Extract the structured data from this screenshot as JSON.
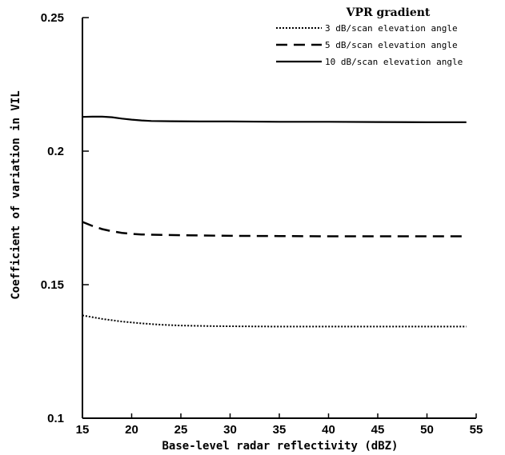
{
  "chart_data": {
    "type": "line",
    "xlabel": "Base-level radar reflectivity (dBZ)",
    "ylabel": "Coefficient of variation in VIL",
    "xlim": [
      15,
      55
    ],
    "ylim": [
      0.1,
      0.25
    ],
    "xticks": [
      "15",
      "20",
      "25",
      "30",
      "35",
      "40",
      "45",
      "50",
      "55"
    ],
    "yticks": [
      "0.1",
      "0.15",
      "0.2",
      "0.25"
    ],
    "grid": false,
    "legend": {
      "title": "VPR gradient",
      "position": "top-right"
    },
    "series": [
      {
        "name": "3 dB/scan elevation angle",
        "style": "dotted",
        "x": [
          15,
          17,
          19,
          21,
          23,
          25,
          28,
          31,
          35,
          40,
          45,
          50,
          54
        ],
        "y": [
          0.1385,
          0.1372,
          0.1362,
          0.1355,
          0.135,
          0.1347,
          0.1345,
          0.1344,
          0.1343,
          0.1343,
          0.1343,
          0.1343,
          0.1343
        ]
      },
      {
        "name": "5 dB/scan elevation angle",
        "style": "dashed",
        "x": [
          15,
          16,
          17,
          18,
          19,
          20,
          21,
          22,
          25,
          30,
          35,
          40,
          45,
          50,
          54
        ],
        "y": [
          0.1735,
          0.172,
          0.1708,
          0.17,
          0.1694,
          0.169,
          0.1688,
          0.1687,
          0.1685,
          0.1683,
          0.1682,
          0.1681,
          0.1681,
          0.1681,
          0.1681
        ]
      },
      {
        "name": "10 dB/scan elevation angle",
        "style": "solid",
        "x": [
          15,
          16,
          17,
          18,
          19,
          20,
          21,
          22,
          24,
          27,
          30,
          35,
          40,
          45,
          50,
          54
        ],
        "y": [
          0.2128,
          0.2129,
          0.2129,
          0.2127,
          0.2122,
          0.2118,
          0.2115,
          0.2113,
          0.2112,
          0.2111,
          0.2111,
          0.211,
          0.211,
          0.2109,
          0.2108,
          0.2108
        ]
      }
    ]
  }
}
